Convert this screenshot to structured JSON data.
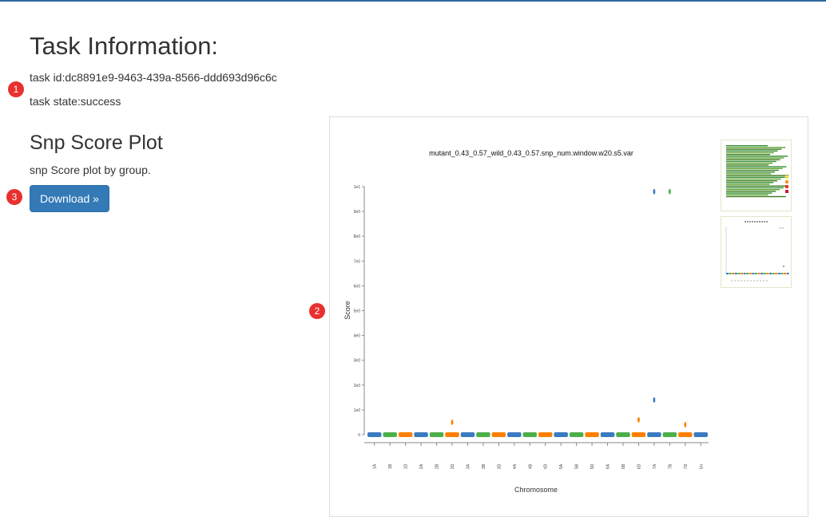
{
  "task": {
    "heading": "Task Information:",
    "id_text": "task id:dc8891e9-9463-439a-8566-ddd693d96c6c",
    "state_text": "task state:success"
  },
  "plot_section": {
    "heading": "Snp Score Plot",
    "description": "snp Score plot by group.",
    "download_label": "Download »"
  },
  "markers": [
    "1",
    "2",
    "3"
  ],
  "colors": {
    "topbar": "#2c6aa0",
    "button": "#337ab7",
    "marker": "#e8312f"
  },
  "chart_data": {
    "type": "scatter",
    "title": "mutant_0.43_0.57_wild_0.43_0.57.snp_num.window.w20.s5.var",
    "xlabel": "Chromosome",
    "ylabel": "Score",
    "ylim": [
      0,
      10
    ],
    "y_ticks": [
      "0",
      "1e0",
      "2e0",
      "3e0",
      "4e0",
      "5e0",
      "6e0",
      "7e0",
      "8e0",
      "9e0",
      "1e1"
    ],
    "categories": [
      "1A",
      "1B",
      "1D",
      "2A",
      "2B",
      "2D",
      "3A",
      "3B",
      "3D",
      "4A",
      "4B",
      "4D",
      "5A",
      "5B",
      "5D",
      "6A",
      "6B",
      "6D",
      "7A",
      "7B",
      "7D",
      "Un"
    ],
    "palette": [
      "#3a7bbf",
      "#4daf4a",
      "#ff7f00"
    ],
    "outliers": [
      {
        "chrom": "2D",
        "score": 0.5
      },
      {
        "chrom": "6D",
        "score": 0.6
      },
      {
        "chrom": "7A",
        "score": 9.8
      },
      {
        "chrom": "7A",
        "score": 1.4
      },
      {
        "chrom": "7B",
        "score": 9.8
      },
      {
        "chrom": "7D",
        "score": 0.4
      }
    ]
  },
  "thumbnails": [
    {
      "name": "heatmap-thumbnail"
    },
    {
      "name": "score-plot-thumbnail"
    }
  ]
}
